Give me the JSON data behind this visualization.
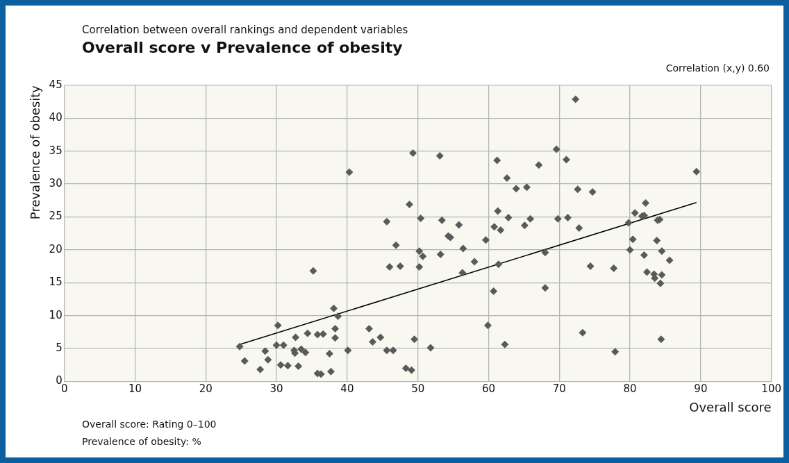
{
  "chart_data": {
    "type": "scatter",
    "subtitle": "Correlation between overall rankings and dependent variables",
    "title": "Overall score v Prevalence of obesity",
    "xlabel": "Overall score",
    "ylabel": "Prevalence of obesity",
    "xlim": [
      0,
      100
    ],
    "xticks": [
      0,
      10,
      20,
      30,
      40,
      50,
      60,
      70,
      80,
      90,
      100
    ],
    "ylim": [
      0,
      45
    ],
    "yticks": [
      0,
      5,
      10,
      15,
      20,
      25,
      30,
      35,
      40,
      45
    ],
    "grid": true,
    "legend": false,
    "marker": "diamond",
    "annotations": [
      "Correlation (x,y) 0.60",
      "Overall score: Rating 0–100",
      "Prevalence of obesity: %"
    ],
    "series": [
      {
        "type": "scatter",
        "color": "#5a5a5a",
        "x": [
          24.8,
          25.5,
          27.7,
          28.4,
          28.8,
          30.2,
          30.0,
          31.0,
          30.6,
          31.6,
          32.7,
          32.5,
          32.6,
          33.1,
          33.5,
          34.1,
          34.4,
          35.2,
          35.8,
          36.6,
          35.8,
          36.3,
          37.5,
          37.7,
          38.1,
          38.3,
          38.3,
          38.7,
          40.1,
          40.3,
          43.1,
          43.6,
          44.7,
          45.6,
          46.5,
          48.3,
          49.1,
          49.5,
          51.8,
          49.3,
          53.1,
          48.8,
          45.6,
          50.4,
          53.4,
          55.8,
          54.3,
          54.6,
          46.9,
          50.2,
          50.7,
          53.2,
          56.4,
          59.6,
          46.0,
          47.5,
          50.2,
          58.0,
          56.3,
          61.4,
          68.0,
          68.0,
          60.7,
          61.2,
          62.6,
          63.9,
          65.4,
          67.1,
          69.6,
          61.3,
          60.8,
          61.7,
          62.8,
          65.1,
          65.9,
          69.8,
          72.3,
          71.0,
          72.6,
          74.7,
          89.4,
          71.2,
          80.7,
          82.2,
          81.7,
          82.0,
          83.9,
          84.2,
          79.8,
          72.8,
          80.4,
          83.8,
          80.0,
          84.5,
          82.0,
          85.6,
          74.4,
          77.7,
          82.4,
          83.4,
          84.5,
          83.5,
          84.3,
          73.3,
          84.4,
          77.9,
          59.9,
          62.3
        ],
        "values": [
          5.3,
          3.1,
          1.8,
          4.6,
          3.3,
          8.5,
          5.5,
          5.5,
          2.5,
          2.4,
          6.7,
          4.7,
          4.3,
          2.3,
          4.9,
          4.4,
          7.3,
          16.8,
          7.1,
          7.2,
          1.2,
          1.1,
          4.2,
          1.5,
          11.1,
          8.0,
          6.6,
          9.9,
          4.7,
          31.8,
          8.0,
          6.0,
          6.7,
          4.7,
          4.7,
          2.0,
          1.7,
          6.4,
          5.1,
          34.7,
          34.3,
          26.9,
          24.3,
          24.8,
          24.5,
          23.8,
          22.1,
          21.9,
          20.7,
          19.8,
          19.0,
          19.3,
          20.2,
          21.5,
          17.4,
          17.5,
          17.4,
          18.2,
          16.5,
          17.8,
          19.6,
          14.2,
          13.7,
          33.6,
          30.9,
          29.3,
          29.5,
          32.9,
          35.3,
          25.9,
          23.5,
          23.0,
          24.9,
          23.7,
          24.7,
          24.7,
          42.9,
          33.7,
          29.2,
          28.8,
          31.9,
          24.9,
          25.6,
          27.1,
          25.1,
          25.2,
          24.5,
          24.6,
          24.1,
          23.3,
          21.6,
          21.4,
          20.0,
          19.8,
          19.2,
          18.4,
          17.5,
          17.2,
          16.6,
          16.3,
          16.2,
          15.7,
          14.9,
          7.4,
          6.4,
          4.5,
          8.5,
          5.6
        ]
      },
      {
        "type": "line",
        "color": "#000000",
        "marker": "none",
        "line_style": "solid",
        "x": [
          24.8,
          89.4
        ],
        "values": [
          5.6,
          27.2
        ]
      }
    ]
  }
}
